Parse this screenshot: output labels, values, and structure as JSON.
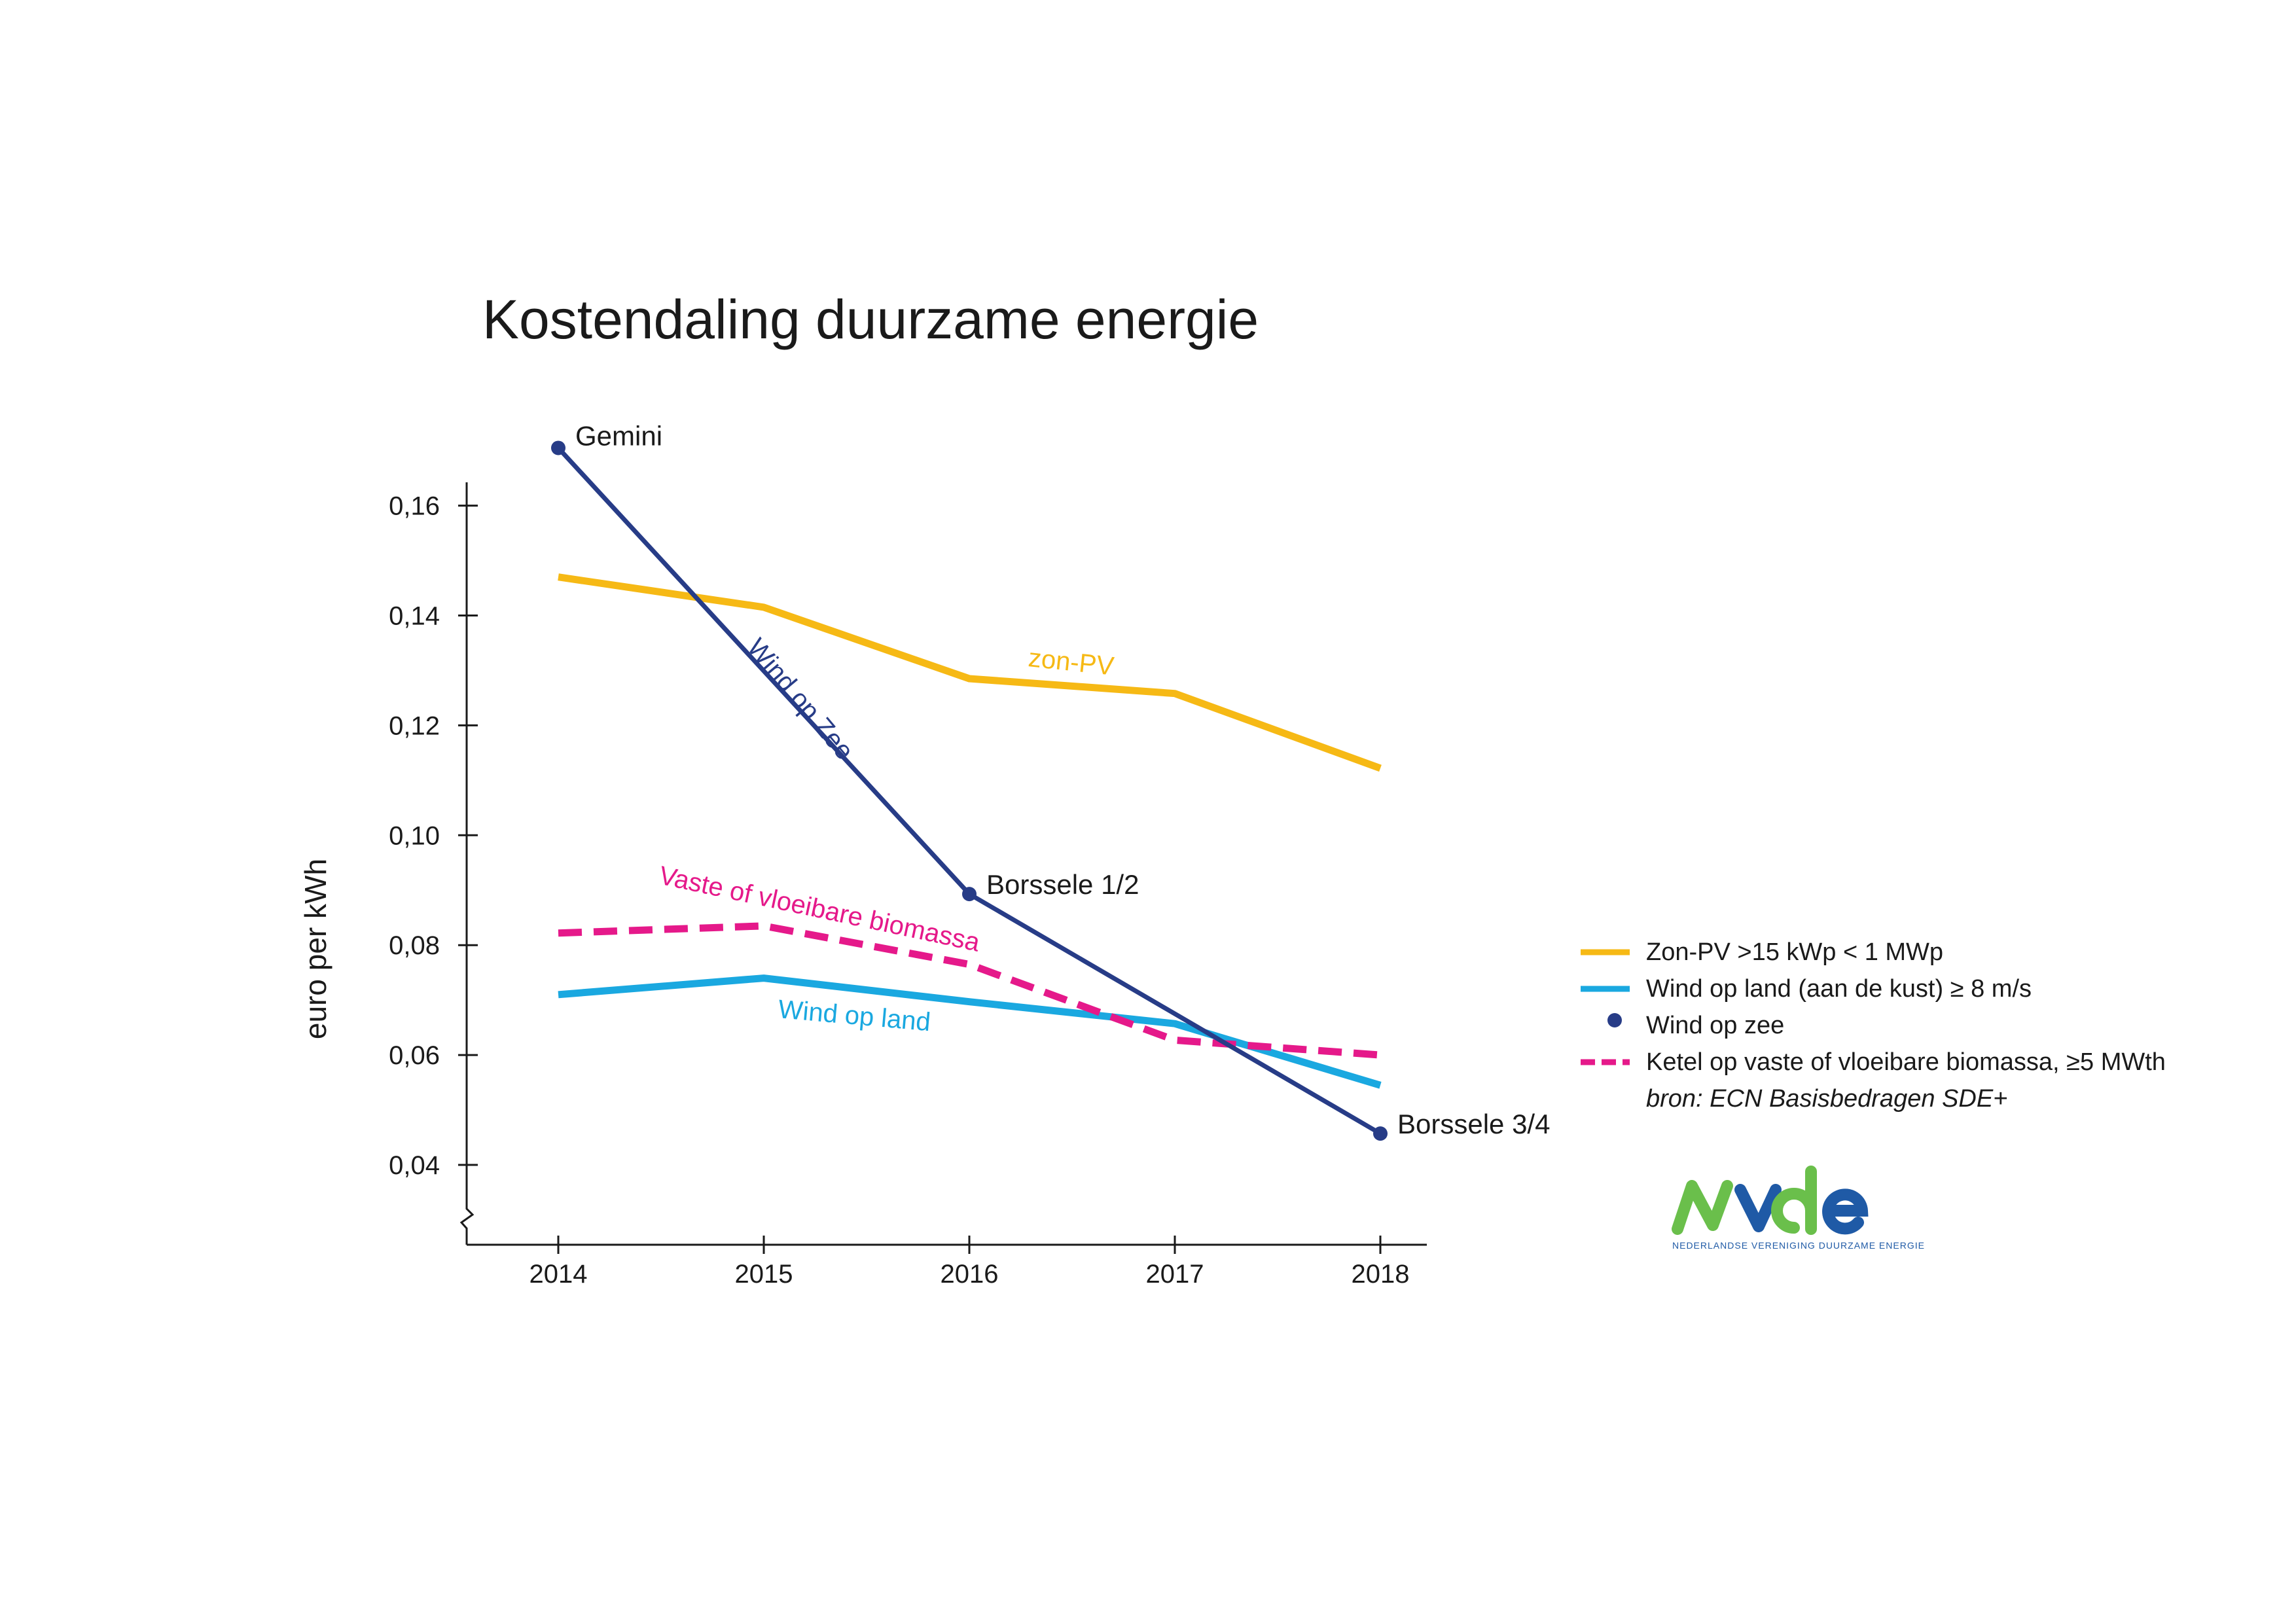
{
  "chart_data": {
    "type": "line",
    "title": "Kostendaling duurzame energie",
    "ylabel": "euro per kWh",
    "xlabel": "",
    "x": [
      2014,
      2015,
      2016,
      2017,
      2018
    ],
    "x_tick_labels": [
      "2014",
      "2015",
      "2016",
      "2017",
      "2018"
    ],
    "y_ticks": [
      0.04,
      0.06,
      0.08,
      0.1,
      0.12,
      0.14,
      0.16
    ],
    "y_tick_labels": [
      "0,04",
      "0,06",
      "0,08",
      "0,10",
      "0,12",
      "0,14",
      "0,16"
    ],
    "ylim": [
      0.03,
      0.165
    ],
    "grid": false,
    "legend_position": "right",
    "series": [
      {
        "key": "zon",
        "name": "Zon-PV  >15 kWp < 1 MWp",
        "inline_label": "zon-PV",
        "color": "#f6b915",
        "style": "solid",
        "values": [
          0.147,
          0.1415,
          0.1285,
          0.1258,
          0.1122
        ]
      },
      {
        "key": "land",
        "name": "Wind op land (aan de kust) ≥ 8 m/s",
        "inline_label": "Wind op land",
        "color": "#1aa8e0",
        "style": "solid",
        "values": [
          0.071,
          0.074,
          0.0697,
          0.0657,
          0.0545
        ]
      },
      {
        "key": "zee",
        "name": "Wind op zee",
        "inline_label": "Wind op Zee",
        "color": "#273c87",
        "style": "markers",
        "points": [
          {
            "x": 2014,
            "y": 0.1705,
            "label": "Gemini"
          },
          {
            "x": 2016,
            "y": 0.0893,
            "label": "Borssele 1/2"
          },
          {
            "x": 2018,
            "y": 0.0457,
            "label": "Borssele 3/4"
          }
        ]
      },
      {
        "key": "bio",
        "name": "Ketel op vaste of vloeibare biomassa, ≥5 MWth",
        "inline_label": "Vaste of vloeibare biomassa",
        "color": "#e5198a",
        "style": "dashed",
        "values": [
          0.0822,
          0.0835,
          0.0765,
          0.0627,
          0.06
        ]
      }
    ],
    "source": "bron: ECN Basisbedragen SDE+"
  },
  "logo": {
    "text": "NVDE",
    "subtitle": "NEDERLANDSE VERENIGING DUURZAME ENERGIE",
    "colors": {
      "green": "#6abf4b",
      "blue": "#1f5aa6"
    }
  }
}
